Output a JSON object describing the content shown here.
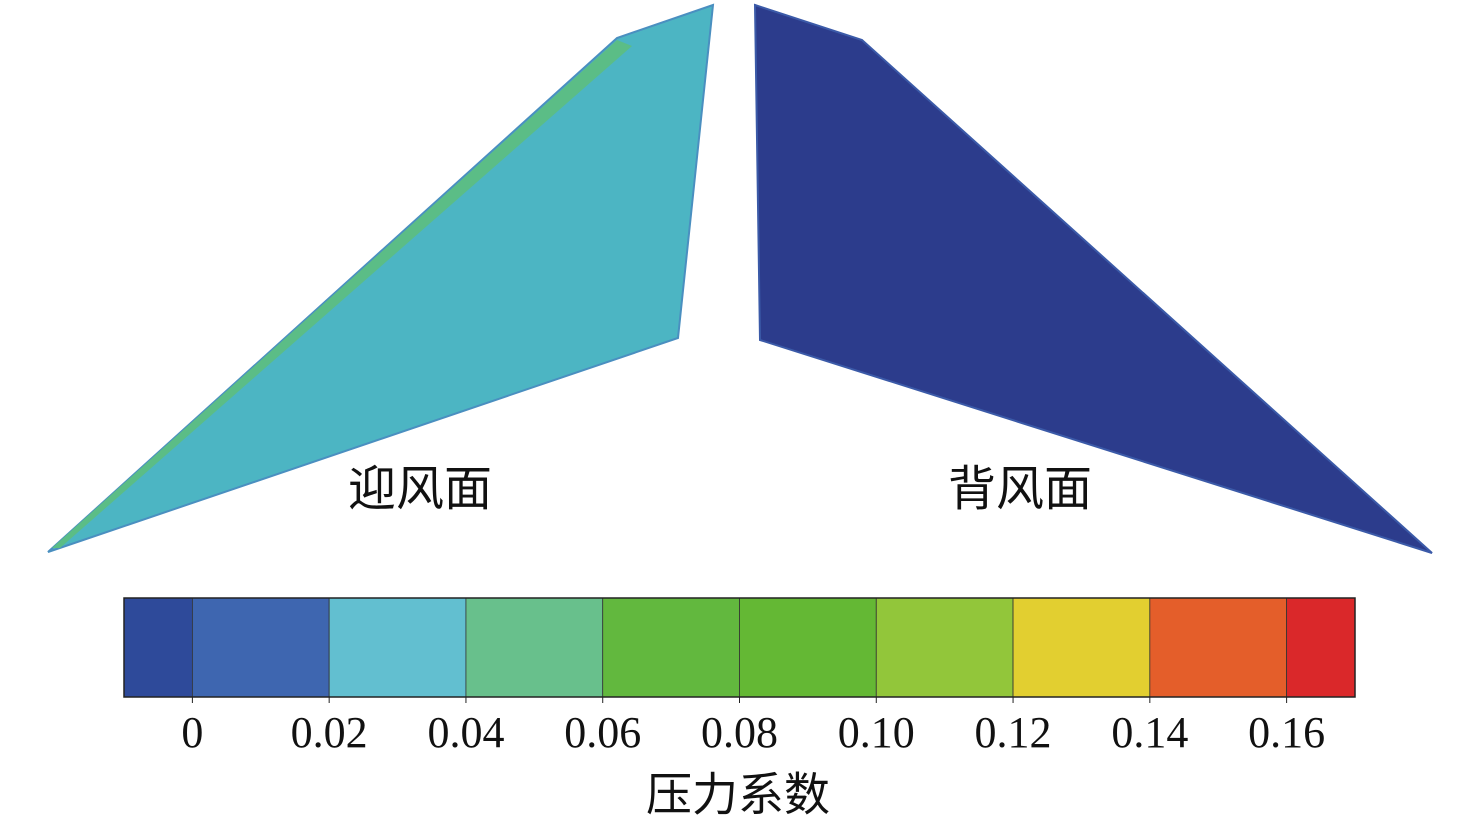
{
  "chart_data": {
    "type": "contour",
    "panel_labels": [
      "迎风面",
      "背风面"
    ],
    "colorbar": {
      "label": "压力系数",
      "clim": [
        -0.01,
        0.17
      ],
      "levels": [
        -0.01,
        0,
        0.02,
        0.04,
        0.06,
        0.08,
        0.1,
        0.12,
        0.14,
        0.16,
        0.17
      ],
      "colors": [
        "#2e4a9a",
        "#3e66b0",
        "#62bfd0",
        "#68c08c",
        "#62b83e",
        "#64b834",
        "#92c63a",
        "#e2cf30",
        "#e45e2a",
        "#da282a"
      ],
      "ticks": [
        0,
        0.02,
        0.04,
        0.06,
        0.08,
        {
          "value": 0.1,
          "label": "0.10"
        },
        0.12,
        0.14,
        0.16
      ]
    }
  }
}
